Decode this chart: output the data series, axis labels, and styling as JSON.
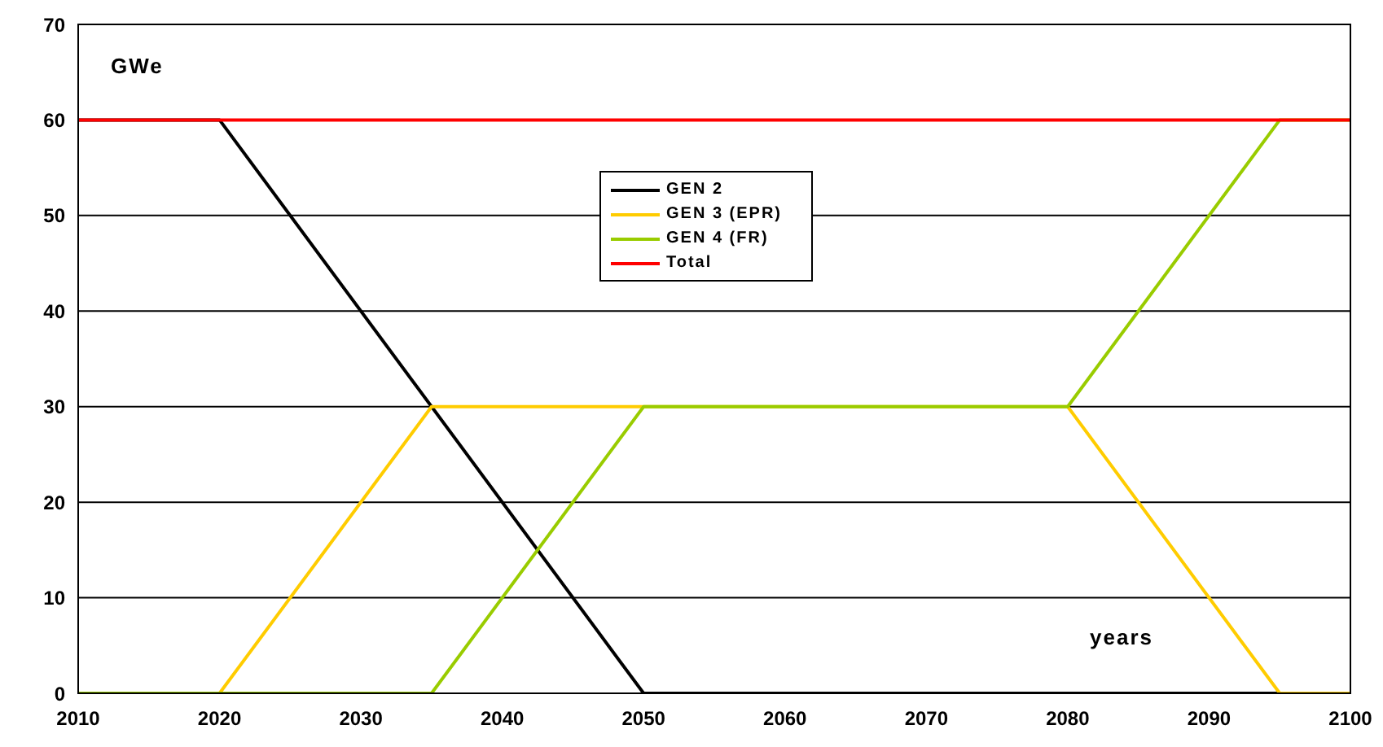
{
  "chart_data": {
    "type": "line",
    "xlabel": "years",
    "ylabel": "GWe",
    "xlim": [
      2010,
      2100
    ],
    "xticks": [
      2010,
      2020,
      2030,
      2040,
      2050,
      2060,
      2070,
      2080,
      2090,
      2100
    ],
    "ylim": [
      0,
      70
    ],
    "yticks": [
      0,
      10,
      20,
      30,
      40,
      50,
      60,
      70
    ],
    "series": [
      {
        "name": "GEN 2",
        "color": "#000000",
        "x": [
          2010,
          2020,
          2050,
          2100
        ],
        "values": [
          60,
          60,
          0,
          0
        ]
      },
      {
        "name": "GEN 3 (EPR)",
        "color": "#ffcc00",
        "x": [
          2010,
          2020,
          2035,
          2080,
          2095,
          2100
        ],
        "values": [
          0,
          0,
          30,
          30,
          0,
          0
        ]
      },
      {
        "name": "GEN 4 (FR)",
        "color": "#99cc00",
        "x": [
          2010,
          2035,
          2050,
          2080,
          2095,
          2100
        ],
        "values": [
          0,
          0,
          30,
          30,
          60,
          60
        ]
      },
      {
        "name": "Total",
        "color": "#ff0000",
        "x": [
          2010,
          2100
        ],
        "values": [
          60,
          60
        ]
      }
    ],
    "grid": "y",
    "legend": "top",
    "marker": "none",
    "line_style": "solid"
  }
}
